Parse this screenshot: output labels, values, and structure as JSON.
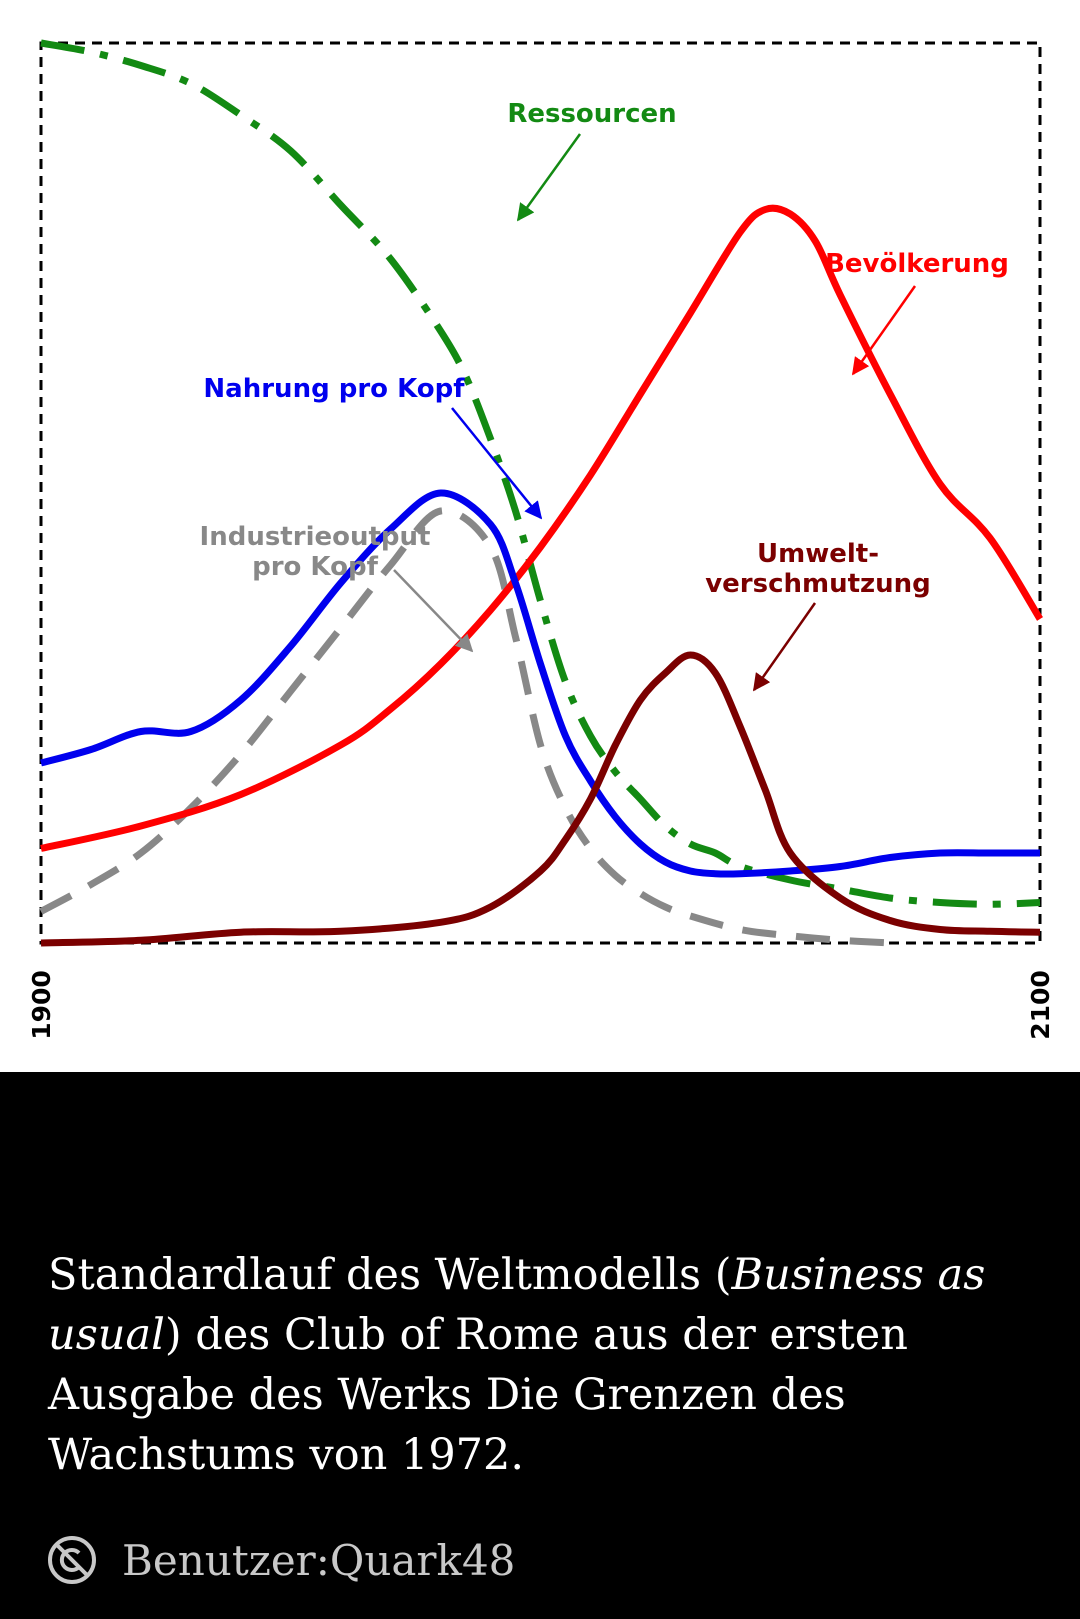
{
  "chart_data": {
    "type": "line",
    "x_range": [
      1900,
      2100
    ],
    "y_range": [
      0,
      1
    ],
    "x_axis": {
      "tick_labels": [
        "1900",
        "2100"
      ],
      "label_orientation": "vertical"
    },
    "frame": "dashed",
    "grid": false,
    "series": [
      {
        "name": "Ressourcen",
        "color": "#138a13",
        "style": "dash-dot",
        "x": [
          1900,
          1910,
          1920,
          1930,
          1940,
          1950,
          1960,
          1970,
          1980,
          1985,
          1990,
          1995,
          2000,
          2005,
          2010,
          2015,
          2020,
          2025,
          2030,
          2035,
          2040,
          2050,
          2060,
          2070,
          2080,
          2090,
          2100
        ],
        "y": [
          1.0,
          0.99,
          0.975,
          0.955,
          0.92,
          0.88,
          0.82,
          0.76,
          0.68,
          0.63,
          0.56,
          0.48,
          0.38,
          0.29,
          0.23,
          0.19,
          0.16,
          0.13,
          0.11,
          0.1,
          0.085,
          0.07,
          0.06,
          0.05,
          0.045,
          0.043,
          0.045
        ]
      },
      {
        "name": "Bevölkerung",
        "color": "#ff0000",
        "style": "solid",
        "x": [
          1900,
          1920,
          1940,
          1960,
          1970,
          1980,
          1990,
          2000,
          2010,
          2020,
          2030,
          2040,
          2045,
          2050,
          2055,
          2060,
          2070,
          2080,
          2090,
          2100
        ],
        "y": [
          0.105,
          0.13,
          0.165,
          0.22,
          0.26,
          0.31,
          0.37,
          0.44,
          0.52,
          0.61,
          0.7,
          0.79,
          0.815,
          0.81,
          0.78,
          0.72,
          0.61,
          0.51,
          0.45,
          0.36
        ]
      },
      {
        "name": "Nahrung pro Kopf",
        "color": "#0000ee",
        "style": "solid",
        "x": [
          1900,
          1910,
          1920,
          1930,
          1940,
          1950,
          1960,
          1970,
          1980,
          1990,
          1995,
          2000,
          2005,
          2010,
          2015,
          2020,
          2025,
          2030,
          2035,
          2040,
          2050,
          2060,
          2070,
          2080,
          2090,
          2100
        ],
        "y": [
          0.2,
          0.215,
          0.235,
          0.235,
          0.27,
          0.33,
          0.4,
          0.46,
          0.5,
          0.465,
          0.4,
          0.31,
          0.23,
          0.18,
          0.14,
          0.11,
          0.09,
          0.08,
          0.077,
          0.077,
          0.08,
          0.085,
          0.095,
          0.1,
          0.1,
          0.1
        ]
      },
      {
        "name": "Industrieoutput pro Kopf",
        "color": "#888888",
        "style": "dashed",
        "x": [
          1900,
          1910,
          1920,
          1930,
          1940,
          1950,
          1960,
          1970,
          1980,
          1990,
          1995,
          2000,
          2005,
          2010,
          2015,
          2020,
          2025,
          2030,
          2040,
          2050,
          2060,
          2070
        ],
        "y": [
          0.035,
          0.065,
          0.1,
          0.15,
          0.21,
          0.28,
          0.35,
          0.42,
          0.48,
          0.44,
          0.34,
          0.22,
          0.15,
          0.105,
          0.075,
          0.055,
          0.04,
          0.03,
          0.015,
          0.008,
          0.003,
          0.0
        ]
      },
      {
        "name": "Umweltverschmutzung",
        "color": "#7b0000",
        "style": "solid",
        "x": [
          1900,
          1920,
          1940,
          1960,
          1980,
          1990,
          2000,
          2005,
          2010,
          2015,
          2020,
          2025,
          2030,
          2035,
          2040,
          2045,
          2050,
          2060,
          2070,
          2080,
          2090,
          2100
        ],
        "y": [
          0.0,
          0.003,
          0.012,
          0.013,
          0.023,
          0.04,
          0.08,
          0.115,
          0.16,
          0.22,
          0.27,
          0.3,
          0.32,
          0.3,
          0.24,
          0.17,
          0.1,
          0.05,
          0.025,
          0.015,
          0.013,
          0.012
        ]
      }
    ],
    "annotations": [
      {
        "series": "Ressourcen",
        "lines": [
          "Ressourcen"
        ]
      },
      {
        "series": "Bevölkerung",
        "lines": [
          "Bevölkerung"
        ]
      },
      {
        "series": "Nahrung pro Kopf",
        "lines": [
          "Nahrung pro Kopf"
        ]
      },
      {
        "series": "Industrieoutput pro Kopf",
        "lines": [
          "Industrieoutput",
          "pro Kopf"
        ]
      },
      {
        "series": "Umweltverschmutzung",
        "lines": [
          "Umwelt-",
          "verschmutzung"
        ]
      }
    ]
  },
  "caption": {
    "part1": "Standardlauf des Weltmodells (",
    "italic1": "Business as usual",
    "part2": ") des Club of Rome aus der ersten Ausgabe des Werks Die Grenzen des Wachstums von 1972."
  },
  "attribution": {
    "icon": "public-domain-icon",
    "author": "Benutzer:Quark48"
  }
}
